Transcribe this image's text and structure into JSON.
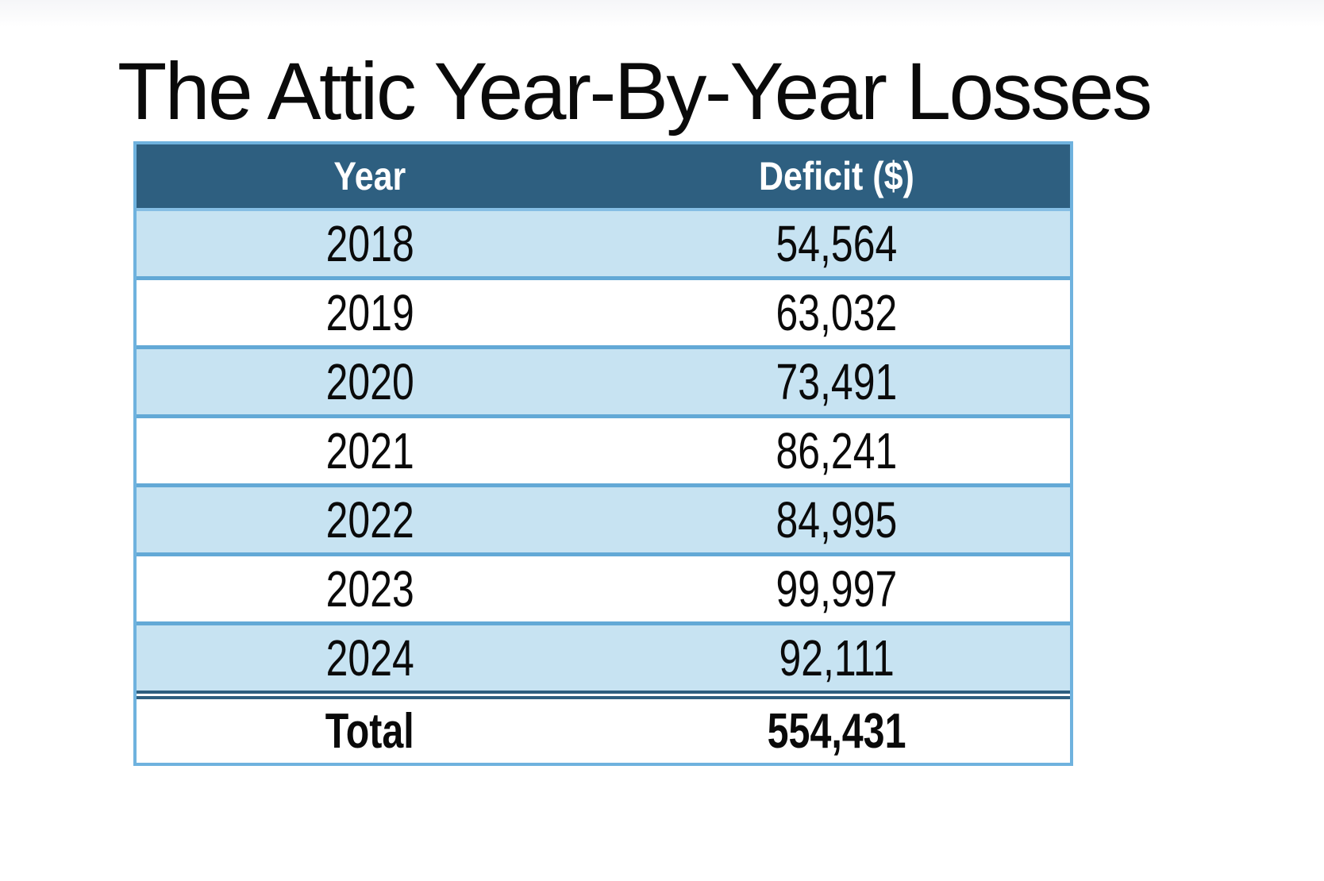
{
  "title": "The Attic Year-By-Year Losses",
  "table": {
    "columns": {
      "year": "Year",
      "deficit": "Deficit ($)"
    },
    "rows": [
      {
        "year": "2018",
        "deficit": "54,564"
      },
      {
        "year": "2019",
        "deficit": "63,032"
      },
      {
        "year": "2020",
        "deficit": "73,491"
      },
      {
        "year": "2021",
        "deficit": "86,241"
      },
      {
        "year": "2022",
        "deficit": "84,995"
      },
      {
        "year": "2023",
        "deficit": "99,997"
      },
      {
        "year": "2024",
        "deficit": "92,111"
      }
    ],
    "total_label": "Total",
    "total_value": "554,431",
    "colors": {
      "header_bg": "#2E5F80",
      "header_text": "#FFFFFF",
      "row_bg": "#FFFFFF",
      "row_alt_bg": "#C7E3F2",
      "border_outer": "#6FB2DE",
      "border_inner": "#63A9D6",
      "border_header_bottom": "#85BEE4",
      "total_separator": "#2E5F80",
      "text": "#0A0A0A"
    }
  },
  "chart_data": {
    "type": "table",
    "title": "The Attic Year-By-Year Losses",
    "columns": [
      "Year",
      "Deficit ($)"
    ],
    "categories": [
      "2018",
      "2019",
      "2020",
      "2021",
      "2022",
      "2023",
      "2024"
    ],
    "values": [
      54564,
      63032,
      73491,
      86241,
      84995,
      99997,
      92111
    ],
    "total": 554431,
    "legend_position": "none",
    "grid": "row-borders"
  }
}
